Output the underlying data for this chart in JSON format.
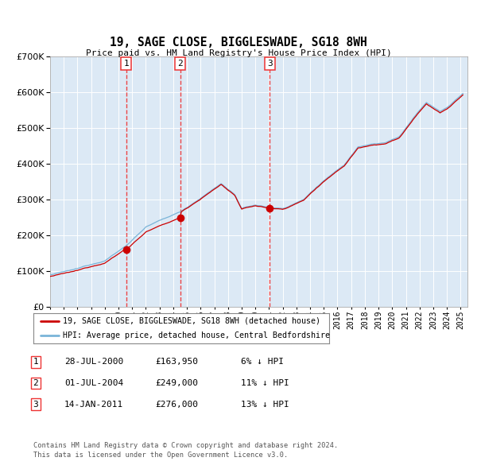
{
  "title": "19, SAGE CLOSE, BIGGLESWADE, SG18 8WH",
  "subtitle": "Price paid vs. HM Land Registry's House Price Index (HPI)",
  "bg_color": "#dce9f5",
  "grid_color": "#ffffff",
  "hpi_line_color": "#7ab4d8",
  "price_line_color": "#cc0000",
  "dot_color": "#cc0000",
  "vline_color": "#ee3333",
  "ylim": [
    0,
    700000
  ],
  "yticks": [
    0,
    100000,
    200000,
    300000,
    400000,
    500000,
    600000,
    700000
  ],
  "legend_entries": [
    "19, SAGE CLOSE, BIGGLESWADE, SG18 8WH (detached house)",
    "HPI: Average price, detached house, Central Bedfordshire"
  ],
  "transactions": [
    {
      "num": 1,
      "date": "28-JUL-2000",
      "price": 163950,
      "price_str": "£163,950",
      "pct": "6%",
      "dir": "↓"
    },
    {
      "num": 2,
      "date": "01-JUL-2004",
      "price": 249000,
      "price_str": "£249,000",
      "pct": "11%",
      "dir": "↓"
    },
    {
      "num": 3,
      "date": "14-JAN-2011",
      "price": 276000,
      "price_str": "£276,000",
      "pct": "13%",
      "dir": "↓"
    }
  ],
  "transaction_dates_decimal": [
    2000.57,
    2004.5,
    2011.04
  ],
  "transaction_prices": [
    163950,
    249000,
    276000
  ],
  "footnote1": "Contains HM Land Registry data © Crown copyright and database right 2024.",
  "footnote2": "This data is licensed under the Open Government Licence v3.0."
}
